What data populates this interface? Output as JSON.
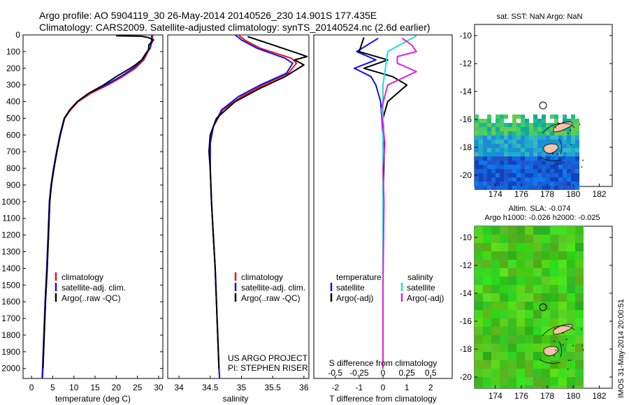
{
  "header": {
    "line1": "Argo profile: AO 5904119_30 26-May-2014 20140526_230 14.901S 177.435E",
    "line2": "Climatology: CARS2009. Satellite-adjusted climatology: synTS_20140524.nc (2.6d earlier)"
  },
  "colors": {
    "climatology": "#ee1111",
    "satellite": "#1111ee",
    "argo": "#000000",
    "satellite_salinity": "#22dddd",
    "argo_salinity": "#dd22dd",
    "land": "#f3c2a8"
  },
  "depth_ticks": [
    "0",
    "100",
    "200",
    "300",
    "400",
    "500",
    "600",
    "700",
    "800",
    "900",
    "1000",
    "1100",
    "1200",
    "1300",
    "1400",
    "1500",
    "1600",
    "1700",
    "1800",
    "1900",
    "2000"
  ],
  "panels": {
    "temperature": {
      "xlabel": "temperature (deg C)",
      "xticks": [
        "0",
        "5",
        "10",
        "15",
        "20",
        "25",
        "30"
      ],
      "legend": [
        "climatology",
        "satellite-adj. clim.",
        "Argo(..raw -QC)"
      ]
    },
    "salinity": {
      "xlabel": "salinity",
      "xticks": [
        "34",
        "34.5",
        "35",
        "35.5",
        "36"
      ],
      "legend": [
        "climatology",
        "satellite-adj. clim.",
        "Argo(..raw -QC)"
      ],
      "credit1": "US ARGO PROJECT",
      "credit2": "PI: STEPHEN RISER"
    },
    "difference": {
      "xlabel": "T difference from climatology",
      "top_label": "S difference from climatology",
      "xticks_t": [
        "-2",
        "-1",
        "0",
        "1",
        "2"
      ],
      "xticks_s": [
        "-0.5",
        "-0.25",
        "0",
        "0.25",
        "0.5"
      ],
      "legend_temperature_title": "temperature",
      "legend_salinity_title": "salinity",
      "legend_temperature": [
        "satellite",
        "Argo(-adj)"
      ],
      "legend_salinity": [
        "satellite",
        "Argo(-adj)"
      ]
    },
    "sst_map": {
      "title": "sat. SST: NaN Argo: NaN",
      "yticks": [
        "-10",
        "-12",
        "-14",
        "-16",
        "-18",
        "-20"
      ],
      "xticks": [
        "174",
        "176",
        "178",
        "180",
        "182"
      ]
    },
    "sla_map": {
      "title1": "Altim. SLA: -0.074",
      "title2": "Argo h1000: -0.026 h2000: -0.025",
      "yticks": [
        "-10",
        "-12",
        "-14",
        "-16",
        "-18",
        "-20"
      ],
      "xticks": [
        "174",
        "176",
        "178",
        "180",
        "182"
      ]
    }
  },
  "side_label": "IMOS 31-May-2014 20:00:51",
  "chart_data": [
    {
      "type": "line",
      "name": "temperature profile",
      "xlabel": "temperature (deg C)",
      "ylabel": "",
      "xlim": [
        -2,
        31
      ],
      "ylim": [
        2060,
        0
      ],
      "series": [
        {
          "name": "climatology",
          "points": [
            [
              28.6,
              0
            ],
            [
              28.5,
              40
            ],
            [
              28.0,
              80
            ],
            [
              27.5,
              100
            ],
            [
              26.5,
              150
            ],
            [
              24.5,
              200
            ],
            [
              21.5,
              250
            ],
            [
              18.0,
              300
            ],
            [
              14.0,
              350
            ],
            [
              11.0,
              400
            ],
            [
              9.2,
              450
            ],
            [
              7.8,
              500
            ],
            [
              6.8,
              600
            ],
            [
              6.0,
              700
            ],
            [
              5.3,
              800
            ],
            [
              4.7,
              900
            ],
            [
              4.3,
              1000
            ],
            [
              4.0,
              1200
            ],
            [
              3.7,
              1400
            ],
            [
              3.3,
              1600
            ],
            [
              3.0,
              1800
            ],
            [
              2.7,
              2000
            ],
            [
              2.6,
              2060
            ]
          ]
        },
        {
          "name": "satellite-adj. clim.",
          "points": [
            [
              28.4,
              0
            ],
            [
              28.3,
              40
            ],
            [
              28.0,
              80
            ],
            [
              27.3,
              100
            ],
            [
              26.2,
              150
            ],
            [
              24.0,
              200
            ],
            [
              21.0,
              250
            ],
            [
              17.5,
              300
            ],
            [
              13.5,
              350
            ],
            [
              10.8,
              400
            ],
            [
              9.0,
              450
            ],
            [
              7.7,
              500
            ],
            [
              6.7,
              600
            ],
            [
              5.9,
              700
            ],
            [
              5.2,
              800
            ],
            [
              4.6,
              900
            ],
            [
              4.2,
              1000
            ],
            [
              3.9,
              1200
            ],
            [
              3.6,
              1400
            ],
            [
              3.2,
              1600
            ],
            [
              2.9,
              1800
            ],
            [
              2.6,
              2000
            ],
            [
              2.5,
              2060
            ]
          ]
        },
        {
          "name": "Argo(..raw -QC)",
          "points": [
            [
              20.0,
              5
            ],
            [
              26.0,
              8
            ],
            [
              27.5,
              15
            ],
            [
              28.8,
              30
            ],
            [
              27.7,
              60
            ],
            [
              27.6,
              90
            ],
            [
              27.0,
              110
            ],
            [
              26.0,
              150
            ],
            [
              24.5,
              180
            ],
            [
              23.3,
              200
            ],
            [
              20.0,
              250
            ],
            [
              17.0,
              300
            ],
            [
              13.5,
              350
            ],
            [
              10.8,
              400
            ],
            [
              9.0,
              450
            ],
            [
              7.8,
              500
            ],
            [
              6.8,
              600
            ],
            [
              6.0,
              700
            ],
            [
              5.3,
              800
            ],
            [
              4.7,
              900
            ],
            [
              4.3,
              1000
            ],
            [
              4.0,
              1200
            ],
            [
              3.7,
              1400
            ],
            [
              3.3,
              1600
            ],
            [
              3.0,
              1800
            ],
            [
              2.7,
              2000
            ]
          ]
        }
      ]
    },
    {
      "type": "line",
      "name": "salinity profile",
      "xlabel": "salinity",
      "ylabel": "",
      "xlim": [
        33.82,
        36.08
      ],
      "ylim": [
        2060,
        0
      ],
      "series": [
        {
          "name": "climatology",
          "points": [
            [
              34.95,
              0
            ],
            [
              35.05,
              30
            ],
            [
              35.3,
              80
            ],
            [
              35.8,
              140
            ],
            [
              35.88,
              170
            ],
            [
              35.75,
              230
            ],
            [
              35.35,
              300
            ],
            [
              35.0,
              370
            ],
            [
              34.7,
              450
            ],
            [
              34.55,
              550
            ],
            [
              34.5,
              650
            ],
            [
              34.5,
              800
            ],
            [
              34.52,
              1000
            ],
            [
              34.55,
              1200
            ],
            [
              34.58,
              1400
            ],
            [
              34.6,
              1600
            ],
            [
              34.62,
              1800
            ],
            [
              34.64,
              2000
            ],
            [
              34.65,
              2060
            ]
          ]
        },
        {
          "name": "satellite-adj. clim.",
          "points": [
            [
              34.9,
              0
            ],
            [
              35.0,
              30
            ],
            [
              35.25,
              80
            ],
            [
              35.7,
              140
            ],
            [
              35.82,
              170
            ],
            [
              35.72,
              230
            ],
            [
              35.3,
              300
            ],
            [
              34.95,
              370
            ],
            [
              34.68,
              450
            ],
            [
              34.55,
              550
            ],
            [
              34.5,
              650
            ],
            [
              34.5,
              800
            ],
            [
              34.52,
              1000
            ],
            [
              34.55,
              1200
            ],
            [
              34.58,
              1400
            ],
            [
              34.6,
              1600
            ],
            [
              34.62,
              1800
            ],
            [
              34.64,
              2000
            ],
            [
              34.65,
              2060
            ]
          ]
        },
        {
          "name": "Argo(..raw -QC)",
          "points": [
            [
              35.1,
              10
            ],
            [
              35.5,
              60
            ],
            [
              35.9,
              110
            ],
            [
              36.05,
              130
            ],
            [
              35.85,
              150
            ],
            [
              36.0,
              180
            ],
            [
              35.7,
              250
            ],
            [
              35.3,
              320
            ],
            [
              34.9,
              400
            ],
            [
              34.6,
              500
            ],
            [
              34.5,
              600
            ],
            [
              34.48,
              700
            ],
            [
              34.5,
              800
            ],
            [
              34.52,
              1000
            ],
            [
              34.55,
              1200
            ],
            [
              34.58,
              1400
            ],
            [
              34.6,
              1600
            ],
            [
              34.62,
              1800
            ],
            [
              34.64,
              2000
            ]
          ]
        }
      ]
    },
    {
      "type": "line",
      "name": "difference from climatology",
      "xlabel": "T difference from climatology",
      "x2label": "S difference from climatology",
      "ylabel": "",
      "xlim": [
        -2.9,
        2.9
      ],
      "x2lim": [
        -0.725,
        0.725
      ],
      "ylim": [
        2060,
        0
      ],
      "series": [
        {
          "name": "temperature satellite",
          "points": [
            [
              -0.2,
              20
            ],
            [
              -1.1,
              100
            ],
            [
              -0.3,
              150
            ],
            [
              -1.2,
              200
            ],
            [
              -0.5,
              250
            ],
            [
              -0.3,
              300
            ],
            [
              -0.1,
              400
            ],
            [
              0,
              600
            ],
            [
              0,
              1000
            ],
            [
              0,
              1500
            ],
            [
              0,
              2000
            ]
          ]
        },
        {
          "name": "temperature Argo(-adj)",
          "points": [
            [
              -0.8,
              15
            ],
            [
              -1.0,
              100
            ],
            [
              0.2,
              150
            ],
            [
              -0.8,
              200
            ],
            [
              0.4,
              250
            ],
            [
              1.0,
              300
            ],
            [
              0.2,
              400
            ],
            [
              0.0,
              500
            ],
            [
              0.05,
              700
            ],
            [
              0.0,
              1000
            ],
            [
              0.0,
              1500
            ],
            [
              0.0,
              2000
            ]
          ]
        },
        {
          "name": "salinity satellite",
          "points": [
            [
              0.35,
              5
            ],
            [
              0.05,
              100
            ],
            [
              0.0,
              300
            ],
            [
              0.0,
              600
            ],
            [
              0.0,
              1000
            ],
            [
              0.0,
              2000
            ]
          ]
        },
        {
          "name": "salinity Argo(-adj)",
          "points": [
            [
              0.2,
              20
            ],
            [
              0.3,
              60
            ],
            [
              0.35,
              100
            ],
            [
              0.15,
              130
            ],
            [
              0.15,
              170
            ],
            [
              0.35,
              220
            ],
            [
              0.05,
              300
            ],
            [
              -0.02,
              450
            ],
            [
              0.02,
              650
            ],
            [
              0.0,
              800
            ],
            [
              0.01,
              1000
            ],
            [
              0.0,
              1500
            ],
            [
              0.0,
              2000
            ]
          ]
        }
      ]
    }
  ]
}
